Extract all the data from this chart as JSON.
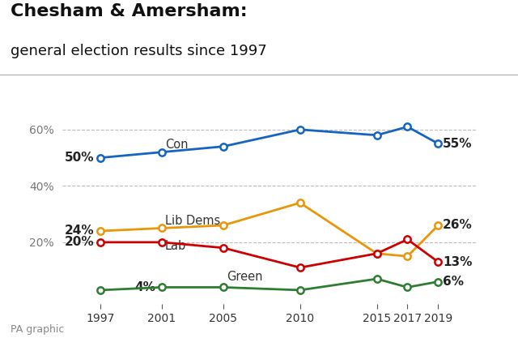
{
  "title_line1": "Chesham & Amersham:",
  "title_line2": "general election results since 1997",
  "footer": "PA graphic",
  "years": [
    1997,
    2001,
    2005,
    2010,
    2015,
    2017,
    2019
  ],
  "con": [
    50,
    52,
    54,
    60,
    58,
    61,
    55
  ],
  "lib": [
    24,
    25,
    26,
    34,
    16,
    15,
    26
  ],
  "lab": [
    20,
    20,
    18,
    11,
    16,
    21,
    13
  ],
  "green": [
    3,
    4,
    4,
    3,
    7,
    4,
    6
  ],
  "con_color": "#1565C0",
  "lib_color": "#E8960A",
  "lab_color": "#CC0000",
  "green_color": "#2E7D32",
  "bg_color": "#FFFFFF",
  "grid_color": "#BBBBBB",
  "yticks": [
    20,
    40,
    60
  ],
  "ylim": [
    -2,
    70
  ],
  "xlim_left": 1994.5,
  "xlim_right": 2021.5,
  "title_fontsize": 16,
  "subtitle_fontsize": 13,
  "label_fontsize": 10.5,
  "value_fontsize": 11
}
